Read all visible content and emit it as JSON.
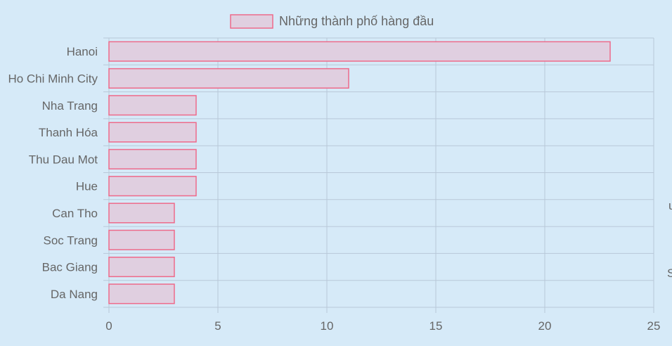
{
  "chart_data": {
    "type": "bar",
    "orientation": "horizontal",
    "categories": [
      "Hanoi",
      "Ho Chi Minh City",
      "Nha Trang",
      "Thanh Hóa",
      "Thu Dau Mot",
      "Hue",
      "Can Tho",
      "Soc Trang",
      "Bac Giang",
      "Da Nang"
    ],
    "series": [
      {
        "name": "Những thành phố hàng đầu",
        "values": [
          23,
          11,
          4,
          4,
          4,
          4,
          3,
          3,
          3,
          3
        ]
      }
    ],
    "xlim": [
      0,
      25
    ],
    "xticks": [
      "0",
      "5",
      "10",
      "15",
      "20",
      "25"
    ],
    "grid": true,
    "legend": "top-center",
    "colors": {
      "bar_fill": "#e0cfe0",
      "bar_border": "#ee6a8a",
      "grid": "#b8c8d8",
      "text": "#666666",
      "background": "#d6eaf8"
    }
  },
  "clipped_text": [
    "u",
    "S"
  ]
}
